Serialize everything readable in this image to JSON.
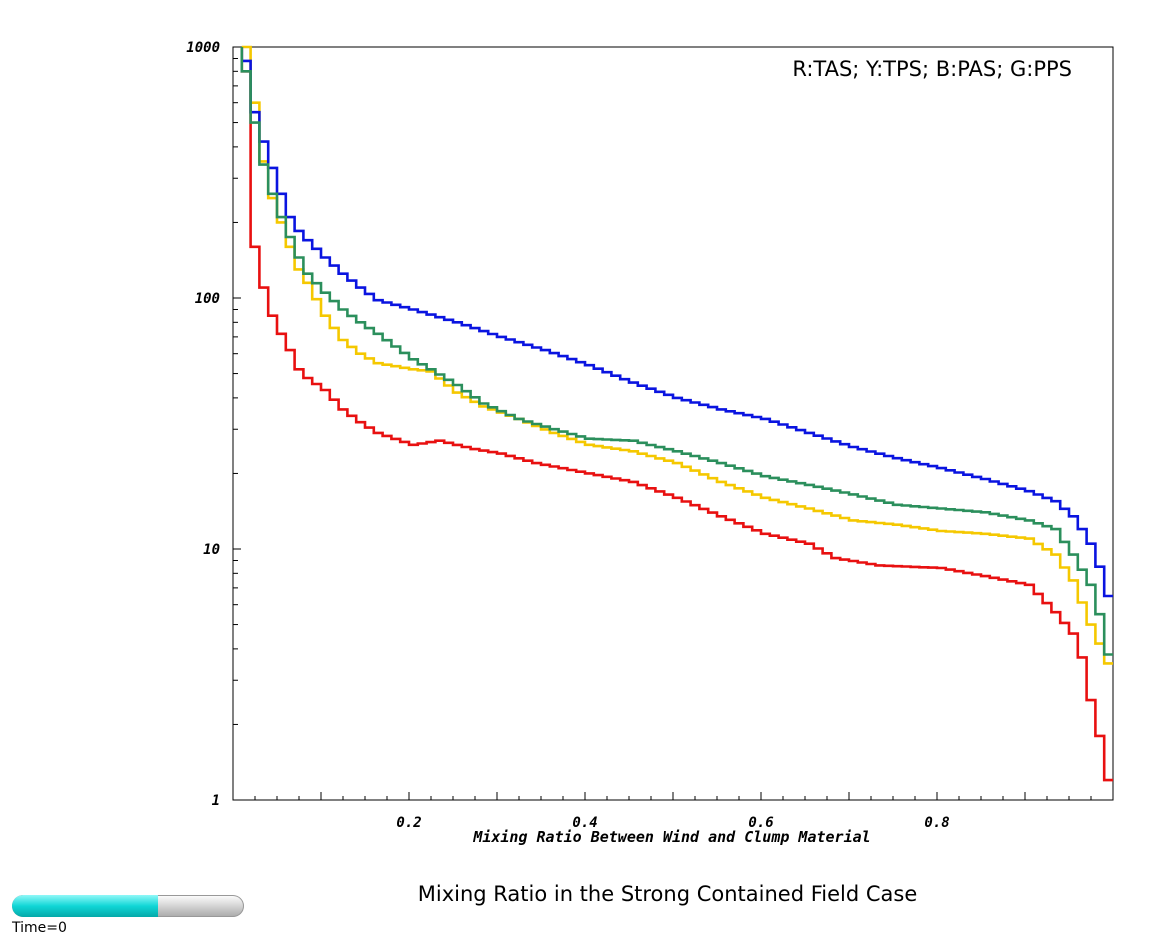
{
  "chart_data": {
    "type": "line",
    "title": "Mixing Ratio in the Strong Contained Field Case",
    "xlabel": "Mixing Ratio Between Wind and Clump Material",
    "ylabel": "",
    "xlim": [
      0.0,
      1.0
    ],
    "ylim": [
      1,
      1000
    ],
    "yscale": "log",
    "grid": false,
    "xticks": [
      "0.2",
      "0.4",
      "0.6",
      "0.8"
    ],
    "yticks": [
      "1",
      "10",
      "100",
      "1000"
    ],
    "legend_text": "R:TAS; Y:TPS; B:PAS; G:PPS",
    "legend_position": "top-right",
    "bin_width": 0.01,
    "series": [
      {
        "label": "R",
        "color": "#e81010",
        "keypoints": [
          [
            0.01,
            800
          ],
          [
            0.02,
            160
          ],
          [
            0.03,
            110
          ],
          [
            0.04,
            85
          ],
          [
            0.05,
            72
          ],
          [
            0.06,
            62
          ],
          [
            0.07,
            52
          ],
          [
            0.08,
            48
          ],
          [
            0.1,
            43
          ],
          [
            0.12,
            36
          ],
          [
            0.14,
            32
          ],
          [
            0.16,
            29
          ],
          [
            0.2,
            26
          ],
          [
            0.23,
            27
          ],
          [
            0.27,
            25
          ],
          [
            0.3,
            24
          ],
          [
            0.34,
            22
          ],
          [
            0.4,
            20
          ],
          [
            0.45,
            18.5
          ],
          [
            0.5,
            16
          ],
          [
            0.55,
            13.5
          ],
          [
            0.6,
            11.5
          ],
          [
            0.65,
            10.5
          ],
          [
            0.68,
            9.2
          ],
          [
            0.73,
            8.6
          ],
          [
            0.8,
            8.4
          ],
          [
            0.85,
            7.8
          ],
          [
            0.9,
            7.2
          ],
          [
            0.93,
            5.6
          ],
          [
            0.95,
            4.6
          ],
          [
            0.96,
            3.7
          ],
          [
            0.97,
            2.5
          ],
          [
            0.98,
            1.8
          ],
          [
            0.99,
            1.2
          ]
        ]
      },
      {
        "label": "Y",
        "color": "#f5c800",
        "keypoints": [
          [
            0.01,
            1000
          ],
          [
            0.02,
            600
          ],
          [
            0.03,
            350
          ],
          [
            0.04,
            250
          ],
          [
            0.05,
            200
          ],
          [
            0.06,
            160
          ],
          [
            0.07,
            130
          ],
          [
            0.08,
            115
          ],
          [
            0.1,
            85
          ],
          [
            0.12,
            68
          ],
          [
            0.14,
            60
          ],
          [
            0.16,
            55
          ],
          [
            0.2,
            52
          ],
          [
            0.22,
            51
          ],
          [
            0.25,
            42
          ],
          [
            0.28,
            37
          ],
          [
            0.32,
            33
          ],
          [
            0.36,
            29
          ],
          [
            0.4,
            26
          ],
          [
            0.45,
            24.5
          ],
          [
            0.5,
            22
          ],
          [
            0.55,
            18.5
          ],
          [
            0.6,
            16
          ],
          [
            0.65,
            14.5
          ],
          [
            0.7,
            13
          ],
          [
            0.75,
            12.5
          ],
          [
            0.8,
            11.8
          ],
          [
            0.85,
            11.5
          ],
          [
            0.9,
            11
          ],
          [
            0.93,
            9.5
          ],
          [
            0.95,
            7.5
          ],
          [
            0.97,
            5
          ],
          [
            0.98,
            4.2
          ],
          [
            0.99,
            3.5
          ]
        ]
      },
      {
        "label": "B",
        "color": "#0a14e0",
        "keypoints": [
          [
            0.01,
            880
          ],
          [
            0.02,
            550
          ],
          [
            0.03,
            420
          ],
          [
            0.04,
            330
          ],
          [
            0.05,
            260
          ],
          [
            0.06,
            210
          ],
          [
            0.07,
            185
          ],
          [
            0.08,
            170
          ],
          [
            0.1,
            145
          ],
          [
            0.12,
            125
          ],
          [
            0.14,
            110
          ],
          [
            0.16,
            98
          ],
          [
            0.2,
            90
          ],
          [
            0.25,
            80
          ],
          [
            0.3,
            70
          ],
          [
            0.35,
            62
          ],
          [
            0.4,
            54
          ],
          [
            0.45,
            46
          ],
          [
            0.5,
            40
          ],
          [
            0.55,
            36
          ],
          [
            0.6,
            33
          ],
          [
            0.65,
            29
          ],
          [
            0.7,
            25.5
          ],
          [
            0.75,
            23
          ],
          [
            0.8,
            21
          ],
          [
            0.85,
            19
          ],
          [
            0.9,
            17
          ],
          [
            0.93,
            15.5
          ],
          [
            0.95,
            13.5
          ],
          [
            0.96,
            12
          ],
          [
            0.97,
            10.5
          ],
          [
            0.98,
            8.5
          ],
          [
            0.99,
            6.5
          ]
        ]
      },
      {
        "label": "G",
        "color": "#2b8f5c",
        "keypoints": [
          [
            0.01,
            800
          ],
          [
            0.02,
            500
          ],
          [
            0.03,
            340
          ],
          [
            0.04,
            260
          ],
          [
            0.05,
            210
          ],
          [
            0.06,
            175
          ],
          [
            0.07,
            145
          ],
          [
            0.08,
            125
          ],
          [
            0.1,
            105
          ],
          [
            0.12,
            90
          ],
          [
            0.14,
            80
          ],
          [
            0.16,
            72
          ],
          [
            0.2,
            57
          ],
          [
            0.22,
            52
          ],
          [
            0.25,
            45
          ],
          [
            0.28,
            38
          ],
          [
            0.32,
            33
          ],
          [
            0.36,
            30
          ],
          [
            0.4,
            27.5
          ],
          [
            0.45,
            27
          ],
          [
            0.5,
            24.5
          ],
          [
            0.55,
            22
          ],
          [
            0.6,
            19.5
          ],
          [
            0.65,
            18
          ],
          [
            0.7,
            16.5
          ],
          [
            0.75,
            15
          ],
          [
            0.8,
            14.5
          ],
          [
            0.85,
            14
          ],
          [
            0.9,
            13
          ],
          [
            0.93,
            12
          ],
          [
            0.95,
            9.5
          ],
          [
            0.97,
            7.2
          ],
          [
            0.98,
            5.5
          ],
          [
            0.99,
            3.8
          ]
        ]
      }
    ]
  },
  "time_slider": {
    "label": "Time=0",
    "progress": 0.63
  }
}
